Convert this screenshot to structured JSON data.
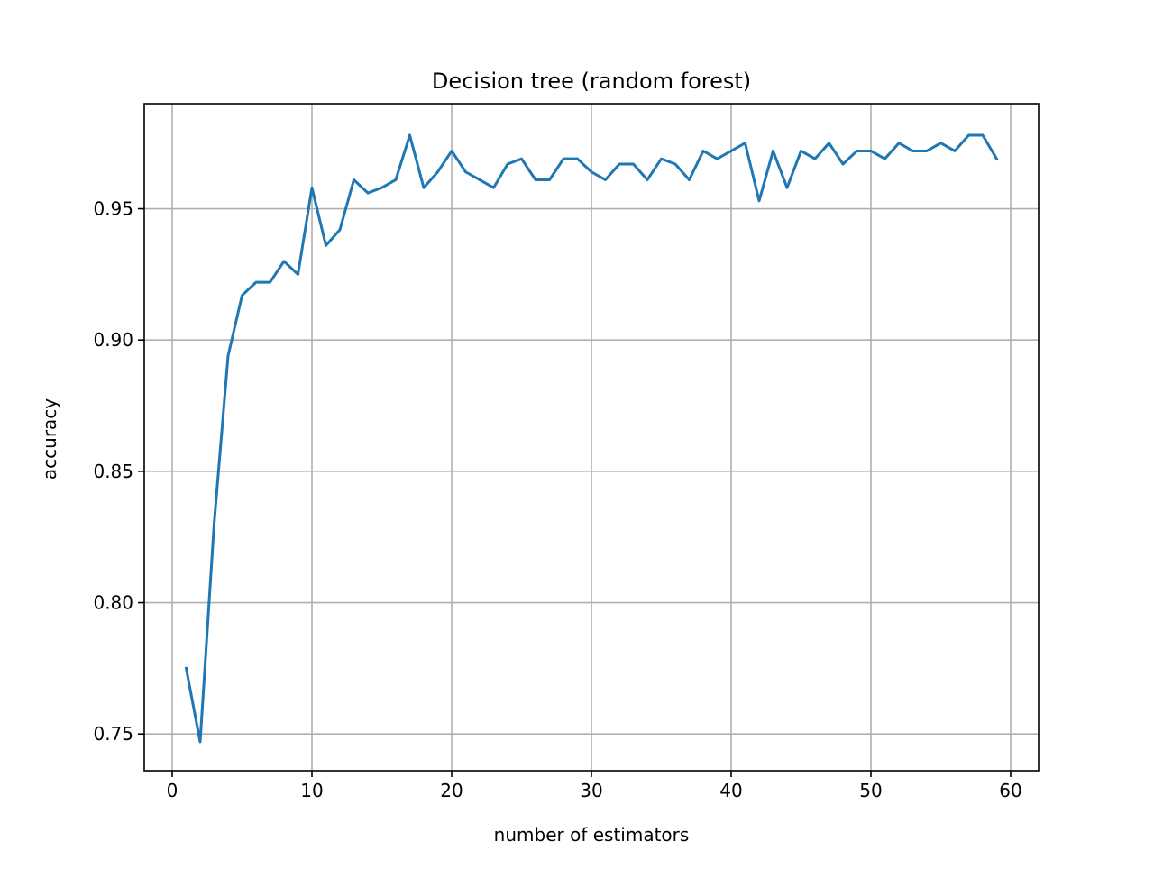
{
  "chart_data": {
    "type": "line",
    "title": "Decision tree (random forest)",
    "xlabel": "number of estimators",
    "ylabel": "accuracy",
    "xlim": [
      -2,
      62
    ],
    "ylim": [
      0.736,
      0.99
    ],
    "xticks": [
      0,
      10,
      20,
      30,
      40,
      50,
      60
    ],
    "xtick_labels": [
      "0",
      "10",
      "20",
      "30",
      "40",
      "50",
      "60"
    ],
    "yticks": [
      0.75,
      0.8,
      0.85,
      0.9,
      0.95
    ],
    "ytick_labels": [
      "0.75",
      "0.80",
      "0.85",
      "0.90",
      "0.95"
    ],
    "grid": true,
    "series": [
      {
        "color": "#1f77b4",
        "x": [
          1,
          2,
          3,
          4,
          5,
          6,
          7,
          8,
          9,
          10,
          11,
          12,
          13,
          14,
          15,
          16,
          17,
          18,
          19,
          20,
          21,
          22,
          23,
          24,
          25,
          26,
          27,
          28,
          29,
          30,
          31,
          32,
          33,
          34,
          35,
          36,
          37,
          38,
          39,
          40,
          41,
          42,
          43,
          44,
          45,
          46,
          47,
          48,
          49,
          50,
          51,
          52,
          53,
          54,
          55,
          56,
          57,
          58,
          59
        ],
        "values": [
          0.775,
          0.747,
          0.83,
          0.894,
          0.917,
          0.922,
          0.922,
          0.93,
          0.925,
          0.958,
          0.936,
          0.942,
          0.961,
          0.956,
          0.958,
          0.961,
          0.978,
          0.958,
          0.964,
          0.972,
          0.964,
          0.961,
          0.958,
          0.967,
          0.969,
          0.961,
          0.961,
          0.969,
          0.969,
          0.964,
          0.961,
          0.967,
          0.967,
          0.961,
          0.969,
          0.967,
          0.961,
          0.972,
          0.969,
          0.972,
          0.975,
          0.953,
          0.972,
          0.958,
          0.972,
          0.969,
          0.975,
          0.967,
          0.972,
          0.972,
          0.969,
          0.975,
          0.972,
          0.972,
          0.975,
          0.972,
          0.978,
          0.978,
          0.969
        ]
      }
    ]
  }
}
